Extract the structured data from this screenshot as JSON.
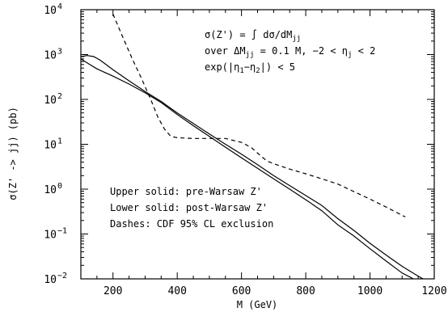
{
  "chart_data": {
    "type": "line",
    "xlabel": "M (GeV)",
    "ylabel": "σ(Z' -> jj) (pb)",
    "xlim": [
      100,
      1200
    ],
    "ylim": [
      0.01,
      10000
    ],
    "yscale": "log",
    "x_ticks": [
      200,
      400,
      600,
      800,
      1000,
      1200
    ],
    "y_ticks": [
      {
        "value": 0.01,
        "mantissa": "10",
        "exponent": "−2"
      },
      {
        "value": 0.1,
        "mantissa": "10",
        "exponent": "−1"
      },
      {
        "value": 1,
        "mantissa": "10",
        "exponent": "0"
      },
      {
        "value": 10,
        "mantissa": "10",
        "exponent": "1"
      },
      {
        "value": 100,
        "mantissa": "10",
        "exponent": "2"
      },
      {
        "value": 1000,
        "mantissa": "10",
        "exponent": "3"
      },
      {
        "value": 10000,
        "mantissa": "10",
        "exponent": "4"
      }
    ],
    "grid": false,
    "annotations_top": [
      "σ(Z') = ∫ dσ/dM",
      "over ΔM",
      "exp(|η",
      "jj",
      " = 0.1 M,   −2 < η",
      "j",
      " < 2",
      "1",
      "−η",
      "2",
      "|) < 5"
    ],
    "annotations_legend": [
      "Upper solid: pre-Warsaw Z'",
      "Lower solid: post-Warsaw Z'",
      "Dashes: CDF 95% CL exclusion"
    ],
    "series": [
      {
        "style": "solid",
        "x": [
          100,
          120,
          140,
          160,
          200,
          250,
          300,
          350,
          400,
          450,
          500,
          550,
          600,
          650,
          700,
          750,
          800,
          850,
          900,
          950,
          1000,
          1050,
          1100,
          1150,
          1165
        ],
        "y": [
          900,
          950,
          900,
          750,
          460,
          260,
          150,
          90,
          50,
          29,
          17,
          10,
          6,
          3.5,
          2,
          1.2,
          0.72,
          0.43,
          0.22,
          0.12,
          0.062,
          0.034,
          0.019,
          0.0115,
          0.01
        ]
      },
      {
        "style": "solid",
        "x": [
          100,
          120,
          150,
          200,
          250,
          300,
          350,
          400,
          450,
          500,
          550,
          600,
          650,
          700,
          750,
          800,
          850,
          900,
          950,
          1000,
          1050,
          1100,
          1135
        ],
        "y": [
          800,
          650,
          480,
          330,
          220,
          140,
          85,
          46,
          26,
          15,
          8.6,
          5,
          2.9,
          1.7,
          1,
          0.58,
          0.33,
          0.16,
          0.09,
          0.047,
          0.025,
          0.0135,
          0.01
        ]
      },
      {
        "style": "dashed",
        "x": [
          200,
          230,
          260,
          290,
          320,
          340,
          360,
          380,
          400,
          450,
          500,
          550,
          600,
          630,
          660,
          680,
          700,
          750,
          800,
          850,
          900,
          950,
          1000,
          1050,
          1110
        ],
        "y": [
          8000,
          2500,
          800,
          280,
          90,
          40,
          22,
          15,
          14,
          13.5,
          13.5,
          13.5,
          11,
          8.5,
          5.5,
          4.2,
          3.7,
          2.8,
          2.2,
          1.7,
          1.3,
          0.88,
          0.6,
          0.4,
          0.24
        ]
      }
    ]
  }
}
